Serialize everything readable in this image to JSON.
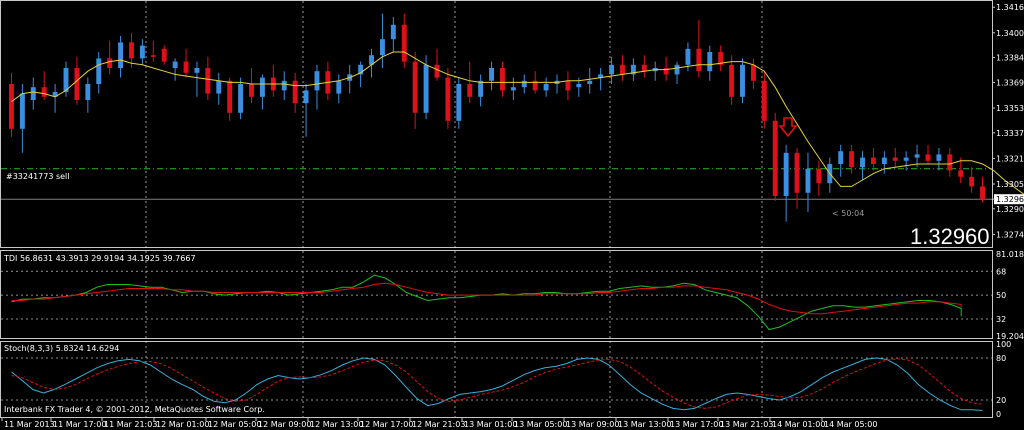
{
  "colors": {
    "background": "#000000",
    "bull": "#3a8fe0",
    "bear": "#e0101a",
    "ma": "#e6d23a",
    "green": "#20c020",
    "red": "#e01010",
    "stoch_main": "#3aaed8",
    "stoch_signal": "#e01010",
    "grid": "#ffffff",
    "panel_line": "#c8c8c8",
    "order_line": "#20c020",
    "price_line": "#808080"
  },
  "chart_data": [
    {
      "type": "candlestick",
      "panel": "price",
      "order_label": "#33241773 sell",
      "order_price": 1.3315,
      "current_price": 1.3296,
      "current_price_label": "1.32960",
      "countdown": "< 50:04",
      "marker": "down-arrow",
      "ylim": [
        1.3268,
        1.3418
      ],
      "y_ticks": [
        "1.34160",
        "1.34000",
        "1.33845",
        "1.33690",
        "1.33530",
        "1.33375",
        "1.33215",
        "1.33055",
        "1.32960",
        "1.32900",
        "1.32740"
      ],
      "candles": [
        [
          1.3368,
          1.3375,
          1.3335,
          1.334
        ],
        [
          1.334,
          1.3368,
          1.3325,
          1.3362
        ],
        [
          1.3358,
          1.3372,
          1.3352,
          1.3366
        ],
        [
          1.3366,
          1.3376,
          1.3358,
          1.336
        ],
        [
          1.336,
          1.3368,
          1.335,
          1.3363
        ],
        [
          1.3363,
          1.3382,
          1.336,
          1.3378
        ],
        [
          1.3378,
          1.3385,
          1.3355,
          1.3358
        ],
        [
          1.3358,
          1.3372,
          1.335,
          1.3368
        ],
        [
          1.3368,
          1.3388,
          1.3362,
          1.3384
        ],
        [
          1.3384,
          1.3395,
          1.3374,
          1.3378
        ],
        [
          1.3378,
          1.3398,
          1.3372,
          1.3394
        ],
        [
          1.3394,
          1.34,
          1.3378,
          1.3384
        ],
        [
          1.3384,
          1.3396,
          1.338,
          1.3392
        ],
        [
          1.3386,
          1.3395,
          1.3382,
          1.3385
        ],
        [
          1.339,
          1.3392,
          1.338,
          1.3382
        ],
        [
          1.3378,
          1.3384,
          1.337,
          1.3382
        ],
        [
          1.3382,
          1.339,
          1.3372,
          1.3375
        ],
        [
          1.3375,
          1.3382,
          1.336,
          1.3378
        ],
        [
          1.3378,
          1.3385,
          1.3358,
          1.3362
        ],
        [
          1.3362,
          1.3375,
          1.3355,
          1.337
        ],
        [
          1.337,
          1.3372,
          1.3345,
          1.335
        ],
        [
          1.335,
          1.3372,
          1.3346,
          1.3368
        ],
        [
          1.3368,
          1.3378,
          1.3356,
          1.336
        ],
        [
          1.336,
          1.3374,
          1.3352,
          1.3372
        ],
        [
          1.3372,
          1.338,
          1.336,
          1.3364
        ],
        [
          1.3364,
          1.3376,
          1.3358,
          1.337
        ],
        [
          1.337,
          1.3375,
          1.335,
          1.3356
        ],
        [
          1.3356,
          1.3368,
          1.3335,
          1.3364
        ],
        [
          1.3364,
          1.338,
          1.3352,
          1.3376
        ],
        [
          1.3376,
          1.3382,
          1.3358,
          1.3362
        ],
        [
          1.3362,
          1.3374,
          1.3356,
          1.337
        ],
        [
          1.337,
          1.338,
          1.3362,
          1.3374
        ],
        [
          1.3374,
          1.3382,
          1.3366,
          1.338
        ],
        [
          1.338,
          1.339,
          1.3372,
          1.3386
        ],
        [
          1.3386,
          1.3412,
          1.3378,
          1.3396
        ],
        [
          1.3396,
          1.341,
          1.3388,
          1.3405
        ],
        [
          1.3405,
          1.3412,
          1.3378,
          1.3382
        ],
        [
          1.3382,
          1.3388,
          1.334,
          1.335
        ],
        [
          1.335,
          1.3386,
          1.3346,
          1.338
        ],
        [
          1.338,
          1.339,
          1.337,
          1.3372
        ],
        [
          1.3372,
          1.3378,
          1.334,
          1.3345
        ],
        [
          1.3345,
          1.3372,
          1.334,
          1.3368
        ],
        [
          1.3368,
          1.3382,
          1.3356,
          1.336
        ],
        [
          1.336,
          1.3374,
          1.3354,
          1.337
        ],
        [
          1.337,
          1.3382,
          1.3364,
          1.3378
        ],
        [
          1.3378,
          1.3382,
          1.336,
          1.3364
        ],
        [
          1.3364,
          1.3372,
          1.3358,
          1.3366
        ],
        [
          1.3366,
          1.3374,
          1.3362,
          1.337
        ],
        [
          1.337,
          1.3376,
          1.3362,
          1.3364
        ],
        [
          1.3364,
          1.3372,
          1.336,
          1.3368
        ],
        [
          1.3368,
          1.3374,
          1.3362,
          1.337
        ],
        [
          1.337,
          1.3376,
          1.3358,
          1.3364
        ],
        [
          1.3366,
          1.3372,
          1.336,
          1.3368
        ],
        [
          1.3368,
          1.3378,
          1.3362,
          1.337
        ],
        [
          1.3372,
          1.3378,
          1.3364,
          1.3374
        ],
        [
          1.3374,
          1.3385,
          1.3368,
          1.338
        ],
        [
          1.338,
          1.3386,
          1.337,
          1.3374
        ],
        [
          1.3374,
          1.3384,
          1.337,
          1.338
        ],
        [
          1.338,
          1.3386,
          1.3372,
          1.3376
        ],
        [
          1.3376,
          1.3382,
          1.337,
          1.3378
        ],
        [
          1.3378,
          1.3385,
          1.337,
          1.3374
        ],
        [
          1.3374,
          1.3382,
          1.3368,
          1.338
        ],
        [
          1.338,
          1.3394,
          1.3376,
          1.339
        ],
        [
          1.339,
          1.3408,
          1.3372,
          1.3376
        ],
        [
          1.3376,
          1.3392,
          1.337,
          1.3388
        ],
        [
          1.3388,
          1.3392,
          1.3376,
          1.338
        ],
        [
          1.338,
          1.3386,
          1.3355,
          1.336
        ],
        [
          1.336,
          1.3384,
          1.3356,
          1.338
        ],
        [
          1.338,
          1.3384,
          1.3365,
          1.337
        ],
        [
          1.337,
          1.3376,
          1.334,
          1.3345
        ],
        [
          1.3345,
          1.335,
          1.3295,
          1.3298
        ],
        [
          1.3298,
          1.333,
          1.3282,
          1.3325
        ],
        [
          1.3325,
          1.3328,
          1.329,
          1.33
        ],
        [
          1.33,
          1.3325,
          1.3288,
          1.3315
        ],
        [
          1.3315,
          1.332,
          1.3298,
          1.3306
        ],
        [
          1.3306,
          1.3322,
          1.33,
          1.3318
        ],
        [
          1.3318,
          1.333,
          1.331,
          1.3326
        ],
        [
          1.3326,
          1.333,
          1.3312,
          1.3316
        ],
        [
          1.3316,
          1.3326,
          1.3308,
          1.3322
        ],
        [
          1.3322,
          1.3328,
          1.3314,
          1.3318
        ],
        [
          1.3318,
          1.3326,
          1.3312,
          1.3322
        ],
        [
          1.3322,
          1.3328,
          1.3316,
          1.332
        ],
        [
          1.332,
          1.3326,
          1.3314,
          1.3322
        ],
        [
          1.3322,
          1.333,
          1.3316,
          1.3324
        ],
        [
          1.3324,
          1.333,
          1.3318,
          1.332
        ],
        [
          1.332,
          1.3328,
          1.3314,
          1.3324
        ],
        [
          1.3324,
          1.3328,
          1.331,
          1.3314
        ],
        [
          1.3314,
          1.3322,
          1.3306,
          1.331
        ],
        [
          1.331,
          1.3316,
          1.33,
          1.3304
        ],
        [
          1.3304,
          1.331,
          1.3294,
          1.3296
        ]
      ],
      "ma": [
        1.3357,
        1.3362,
        1.3363,
        1.3362,
        1.336,
        1.3364,
        1.337,
        1.3376,
        1.338,
        1.3382,
        1.3383,
        1.3381,
        1.338,
        1.3378,
        1.3376,
        1.3374,
        1.3373,
        1.3372,
        1.3371,
        1.337,
        1.3369,
        1.3369,
        1.3368,
        1.3368,
        1.3368,
        1.3368,
        1.3367,
        1.3367,
        1.3368,
        1.3369,
        1.337,
        1.3372,
        1.3375,
        1.338,
        1.3385,
        1.3388,
        1.3388,
        1.3384,
        1.338,
        1.3377,
        1.3374,
        1.3372,
        1.337,
        1.3369,
        1.3369,
        1.3369,
        1.3369,
        1.3369,
        1.3369,
        1.3369,
        1.3369,
        1.337,
        1.337,
        1.3371,
        1.3372,
        1.3373,
        1.3374,
        1.3375,
        1.3376,
        1.3377,
        1.3377,
        1.3378,
        1.3379,
        1.338,
        1.338,
        1.3381,
        1.3382,
        1.3382,
        1.338,
        1.3376,
        1.3366,
        1.3354,
        1.3343,
        1.3332,
        1.3322,
        1.3312,
        1.3304,
        1.3304,
        1.3308,
        1.3312,
        1.3315,
        1.3316,
        1.3317,
        1.3318,
        1.3318,
        1.3318,
        1.3318,
        1.332,
        1.332,
        1.3318,
        1.3314,
        1.3308,
        1.3303,
        1.3298
      ]
    },
    {
      "type": "line",
      "panel": "TDI",
      "label": "TDI 56.8631 43.3913 29.9194 34.1925 39.7667",
      "ylim": [
        19.2044,
        81.0188
      ],
      "y_ticks": [
        "81.0188",
        "68",
        "50",
        "32",
        "19.2044"
      ],
      "levels": [
        68,
        50,
        32
      ],
      "series": [
        {
          "values": [
            45,
            47,
            47,
            48,
            48,
            49,
            50,
            52,
            56,
            58,
            58,
            58,
            57,
            56,
            56,
            54,
            52,
            53,
            53,
            51,
            50,
            51,
            52,
            52,
            53,
            52,
            50,
            51,
            52,
            53,
            54,
            56,
            56,
            60,
            65,
            63,
            58,
            52,
            49,
            46,
            47,
            48,
            48,
            49,
            50,
            50,
            51,
            50,
            51,
            51,
            52,
            52,
            51,
            51,
            52,
            53,
            53,
            55,
            56,
            57,
            56,
            56,
            57,
            59,
            58,
            54,
            52,
            50,
            48,
            42,
            34,
            24,
            26,
            30,
            34,
            38,
            40,
            42,
            42,
            41,
            41,
            42,
            43,
            44,
            45,
            46,
            46,
            45,
            43,
            40,
            36,
            34
          ]
        },
        {
          "values": [
            46,
            46,
            47,
            47,
            48,
            49,
            50,
            51,
            52,
            53,
            54,
            55,
            55,
            55,
            55,
            54,
            54,
            53,
            53,
            52,
            52,
            52,
            52,
            52,
            52,
            52,
            52,
            52,
            52,
            52,
            53,
            54,
            55,
            56,
            58,
            59,
            58,
            56,
            54,
            52,
            51,
            50,
            50,
            50,
            50,
            50,
            50,
            50,
            50,
            50,
            51,
            51,
            51,
            51,
            51,
            52,
            52,
            53,
            54,
            55,
            55,
            56,
            56,
            57,
            57,
            56,
            55,
            54,
            52,
            50,
            47,
            43,
            40,
            38,
            37,
            36,
            36,
            37,
            38,
            39,
            40,
            41,
            42,
            43,
            44,
            44,
            45,
            45,
            44,
            43,
            42,
            41
          ]
        }
      ]
    },
    {
      "type": "line",
      "panel": "Stoch",
      "label": "Stoch(8,3,3) 5.8324 14.6294",
      "ylim": [
        0,
        100
      ],
      "y_ticks": [
        "100",
        "80",
        "20",
        "0"
      ],
      "levels": [
        80,
        20
      ],
      "series": [
        {
          "values": [
            60,
            48,
            35,
            30,
            35,
            42,
            50,
            58,
            66,
            72,
            76,
            78,
            76,
            70,
            60,
            50,
            42,
            35,
            25,
            18,
            16,
            20,
            30,
            42,
            50,
            55,
            52,
            50,
            52,
            56,
            62,
            70,
            76,
            80,
            78,
            70,
            55,
            38,
            22,
            12,
            15,
            22,
            28,
            30,
            32,
            35,
            40,
            48,
            56,
            62,
            66,
            68,
            72,
            78,
            80,
            78,
            70,
            56,
            42,
            30,
            22,
            14,
            8,
            6,
            8,
            15,
            22,
            28,
            30,
            28,
            25,
            22,
            20,
            25,
            32,
            42,
            52,
            60,
            66,
            72,
            78,
            80,
            78,
            70,
            58,
            42,
            30,
            20,
            12,
            6,
            6,
            5
          ]
        },
        {
          "values": [
            55,
            52,
            45,
            38,
            35,
            37,
            42,
            50,
            57,
            63,
            68,
            72,
            75,
            75,
            72,
            65,
            56,
            47,
            38,
            30,
            22,
            18,
            20,
            28,
            38,
            47,
            52,
            53,
            52,
            53,
            56,
            62,
            68,
            74,
            77,
            76,
            70,
            60,
            46,
            32,
            22,
            18,
            20,
            24,
            28,
            31,
            34,
            39,
            45,
            53,
            59,
            64,
            67,
            70,
            74,
            77,
            78,
            75,
            67,
            56,
            44,
            33,
            24,
            16,
            10,
            8,
            10,
            16,
            22,
            27,
            28,
            27,
            25,
            23,
            24,
            29,
            36,
            45,
            53,
            60,
            66,
            72,
            77,
            79,
            77,
            70,
            58,
            45,
            32,
            22,
            16,
            14
          ]
        }
      ]
    }
  ],
  "x_axis": {
    "labels": [
      "11 Mar 2013",
      "11 Mar 17:00",
      "11 Mar 21:03",
      "12 Mar 01:00",
      "12 Mar 05:00",
      "12 Mar 09:00",
      "12 Mar 13:00",
      "12 Mar 17:00",
      "12 Mar 21:03",
      "13 Mar 01:00",
      "13 Mar 05:00",
      "13 Mar 09:00",
      "13 Mar 13:00",
      "13 Mar 17:00",
      "13 Mar 21:03",
      "14 Mar 01:00",
      "14 Mar 05:00"
    ]
  },
  "footer_text": "Interbank FX Trader 4, © 2001-2012, MetaQuotes Software Corp."
}
